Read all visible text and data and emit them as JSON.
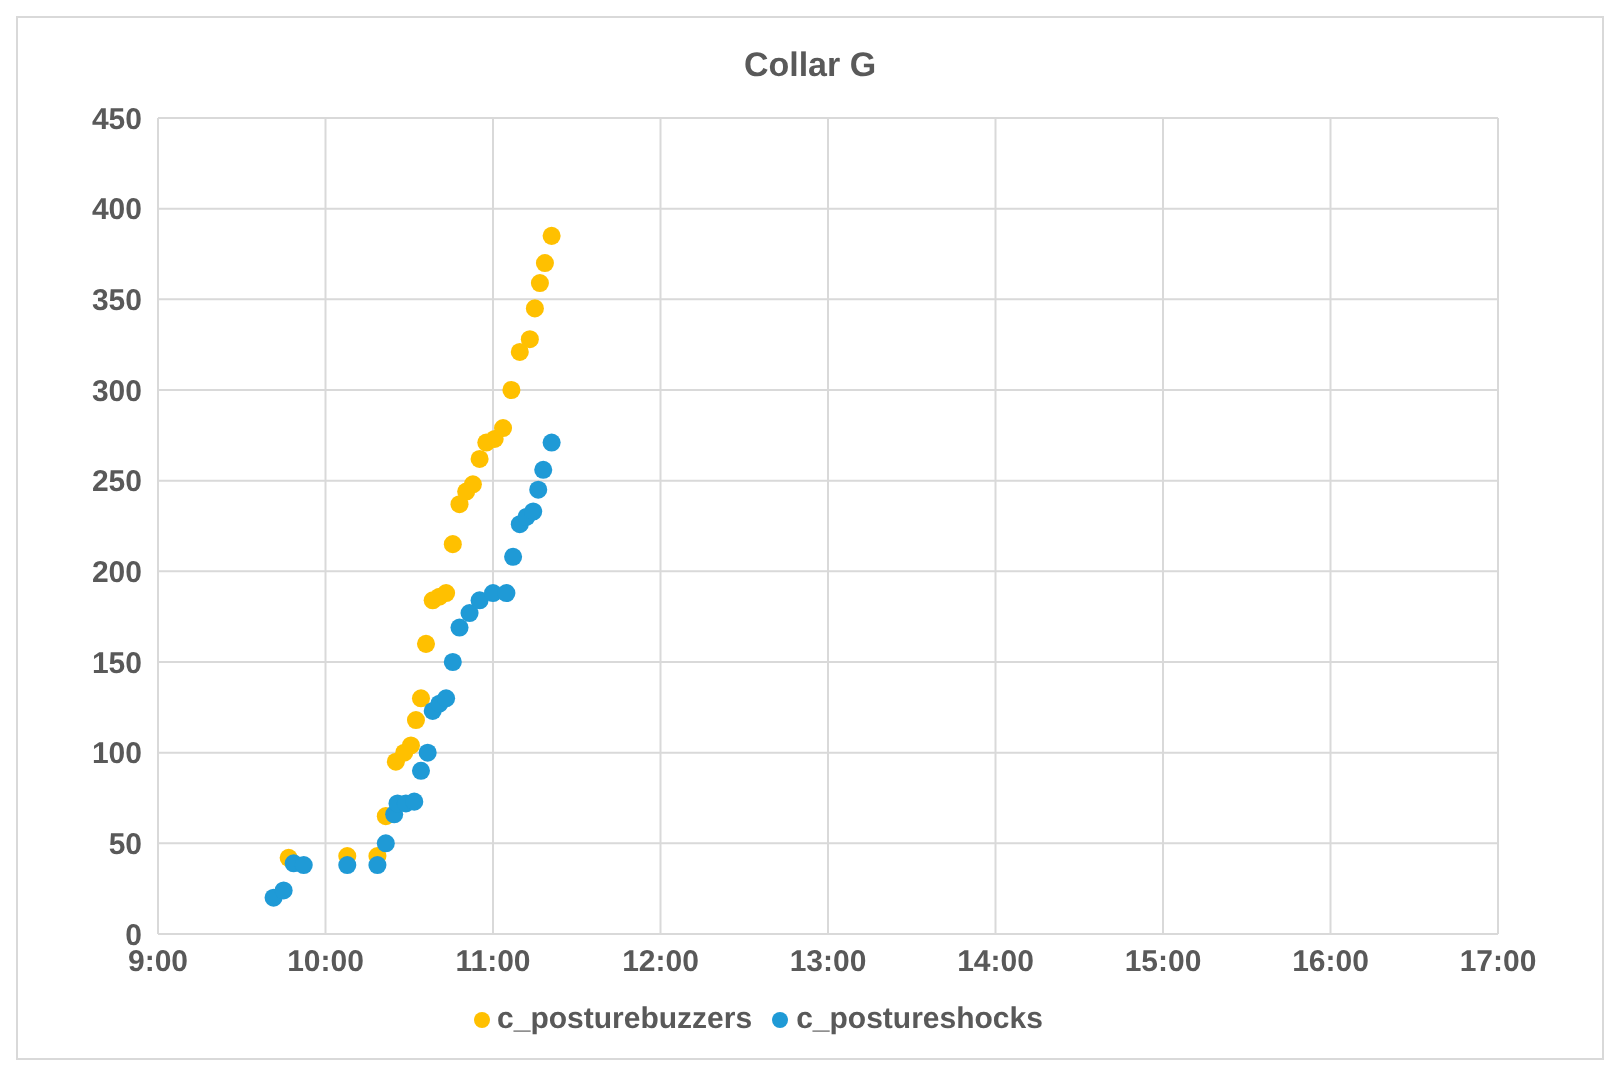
{
  "chart_data": {
    "type": "scatter",
    "title": "Collar G",
    "xlim": [
      9,
      17
    ],
    "xticks": [
      {
        "value": 9,
        "label": "9:00"
      },
      {
        "value": 10,
        "label": "10:00"
      },
      {
        "value": 11,
        "label": "11:00"
      },
      {
        "value": 12,
        "label": "12:00"
      },
      {
        "value": 13,
        "label": "13:00"
      },
      {
        "value": 14,
        "label": "14:00"
      },
      {
        "value": 15,
        "label": "15:00"
      },
      {
        "value": 16,
        "label": "16:00"
      },
      {
        "value": 17,
        "label": "17:00"
      }
    ],
    "ylim": [
      0,
      450
    ],
    "yticks": [
      0,
      50,
      100,
      150,
      200,
      250,
      300,
      350,
      400,
      450
    ],
    "grid": true,
    "legend": "bottom",
    "marker": "circle",
    "series": [
      {
        "name": "c_posturebuzzers",
        "color": "#ffc000",
        "x": [
          9.78,
          10.13,
          10.31,
          10.36,
          10.42,
          10.47,
          10.51,
          10.54,
          10.57,
          10.6,
          10.64,
          10.68,
          10.72,
          10.76,
          10.8,
          10.84,
          10.88,
          10.92,
          10.96,
          11.01,
          11.06,
          11.11,
          11.16,
          11.22,
          11.25,
          11.28,
          11.31,
          11.35
        ],
        "values": [
          42,
          43,
          43,
          65,
          95,
          100,
          104,
          118,
          130,
          160,
          184,
          186,
          188,
          215,
          237,
          244,
          248,
          262,
          271,
          273,
          279,
          300,
          321,
          328,
          345,
          359,
          370,
          385
        ]
      },
      {
        "name": "c_postureshocks",
        "color": "#1f9ad6",
        "x": [
          9.69,
          9.75,
          9.81,
          9.87,
          10.13,
          10.31,
          10.36,
          10.41,
          10.43,
          10.48,
          10.53,
          10.57,
          10.61,
          10.64,
          10.68,
          10.72,
          10.76,
          10.8,
          10.86,
          10.92,
          11.0,
          11.08,
          11.12,
          11.16,
          11.2,
          11.24,
          11.27,
          11.3,
          11.35
        ],
        "values": [
          20,
          24,
          39,
          38,
          38,
          38,
          50,
          66,
          72,
          72,
          73,
          90,
          100,
          123,
          127,
          130,
          150,
          169,
          177,
          184,
          188,
          188,
          208,
          226,
          230,
          233,
          245,
          256,
          271
        ]
      }
    ]
  }
}
